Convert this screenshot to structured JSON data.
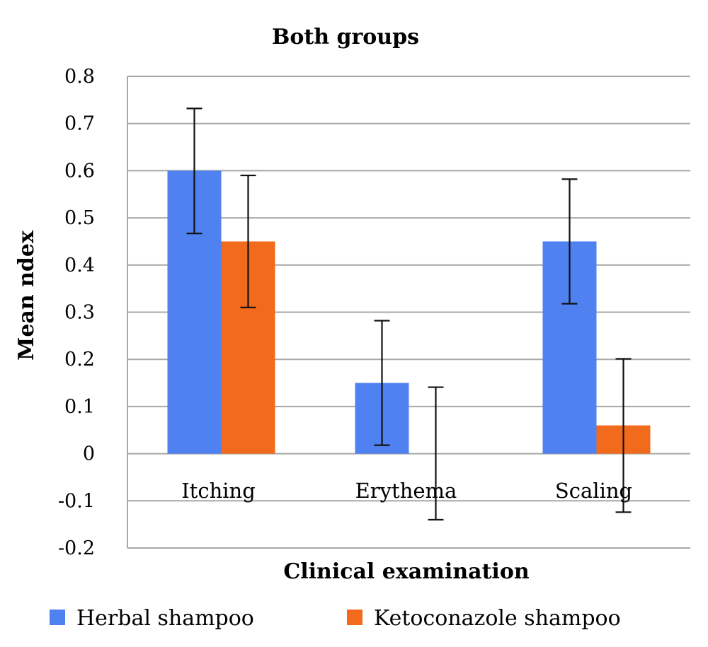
{
  "chart_data": {
    "type": "bar",
    "title": "Both groups",
    "xlabel": "Clinical examination",
    "ylabel": "Mean ndex",
    "categories": [
      "Itching",
      "Erythema",
      "Scaling"
    ],
    "ylim": [
      -0.2,
      0.8
    ],
    "yticks": [
      "0.8",
      "0.7",
      "0.6",
      "0.5",
      "0.4",
      "0.3",
      "0.2",
      "0.1",
      "0",
      "-0.1",
      "-0.2"
    ],
    "grid": true,
    "legend": "bottom",
    "series": [
      {
        "name": "Herbal shampoo",
        "color": "#4f81f0",
        "values": [
          0.6,
          0.15,
          0.45
        ],
        "error_low": [
          0.467,
          0.018,
          0.318
        ],
        "error_high": [
          0.732,
          0.282,
          0.582
        ]
      },
      {
        "name": "Ketoconazole shampoo",
        "color": "#f26a1b",
        "values": [
          0.45,
          0.0,
          0.06
        ],
        "error_low": [
          0.31,
          -0.14,
          -0.124
        ],
        "error_high": [
          0.59,
          0.141,
          0.201
        ]
      }
    ]
  }
}
